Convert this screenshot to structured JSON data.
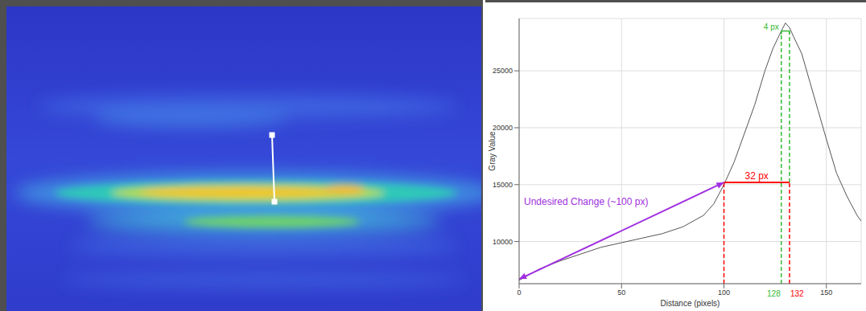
{
  "chart_data": {
    "type": "line",
    "x_label": "Distance (pixels)",
    "y_label": "Gray Value",
    "xlim": [
      0,
      167
    ],
    "ylim": [
      6300,
      29600
    ],
    "xticks": [
      0,
      50,
      100,
      150
    ],
    "yticks": [
      10000,
      15000,
      20000,
      25000
    ],
    "grid": true,
    "color": "#555555",
    "x": [
      0,
      10,
      20,
      30,
      40,
      50,
      60,
      70,
      80,
      90,
      95,
      100,
      105,
      110,
      115,
      120,
      124,
      128,
      130,
      132,
      134,
      138,
      142,
      146,
      150,
      155,
      160,
      165,
      167
    ],
    "values": [
      6600,
      7600,
      8300,
      8900,
      9500,
      9900,
      10300,
      10700,
      11300,
      12300,
      13300,
      15000,
      17000,
      19500,
      22000,
      25000,
      27000,
      28500,
      29200,
      28800,
      28000,
      26500,
      24000,
      21500,
      19000,
      16000,
      14000,
      12300,
      11800
    ],
    "annotations": [
      {
        "text": "32 px",
        "color": "#ff0000",
        "x": [
          100,
          132
        ],
        "y": [
          15200,
          15200
        ],
        "marker": "line"
      },
      {
        "text": "4 px",
        "color": "#33bb33",
        "x": [
          128,
          132
        ],
        "y": [
          28500,
          28500
        ],
        "marker": "bracket"
      },
      {
        "text": "Undesired Change (~100 px)",
        "color": "#a030e0",
        "x": [
          0,
          100
        ],
        "y": [
          6700,
          15200
        ],
        "marker": "arrow"
      }
    ],
    "guides": [
      {
        "x": 100,
        "y": [
          6300,
          15200
        ],
        "color": "#ff0000",
        "line_style": "dashed"
      },
      {
        "x": 132,
        "y": [
          6300,
          15200
        ],
        "color": "#ff0000",
        "line_style": "dashed",
        "label": "132"
      },
      {
        "x": 128,
        "y": [
          6300,
          28500
        ],
        "color": "#33bb33",
        "line_style": "dashed",
        "label": "128"
      },
      {
        "x": 132,
        "y": [
          15200,
          28500
        ],
        "color": "#33bb33",
        "line_style": "dashed"
      }
    ]
  }
}
